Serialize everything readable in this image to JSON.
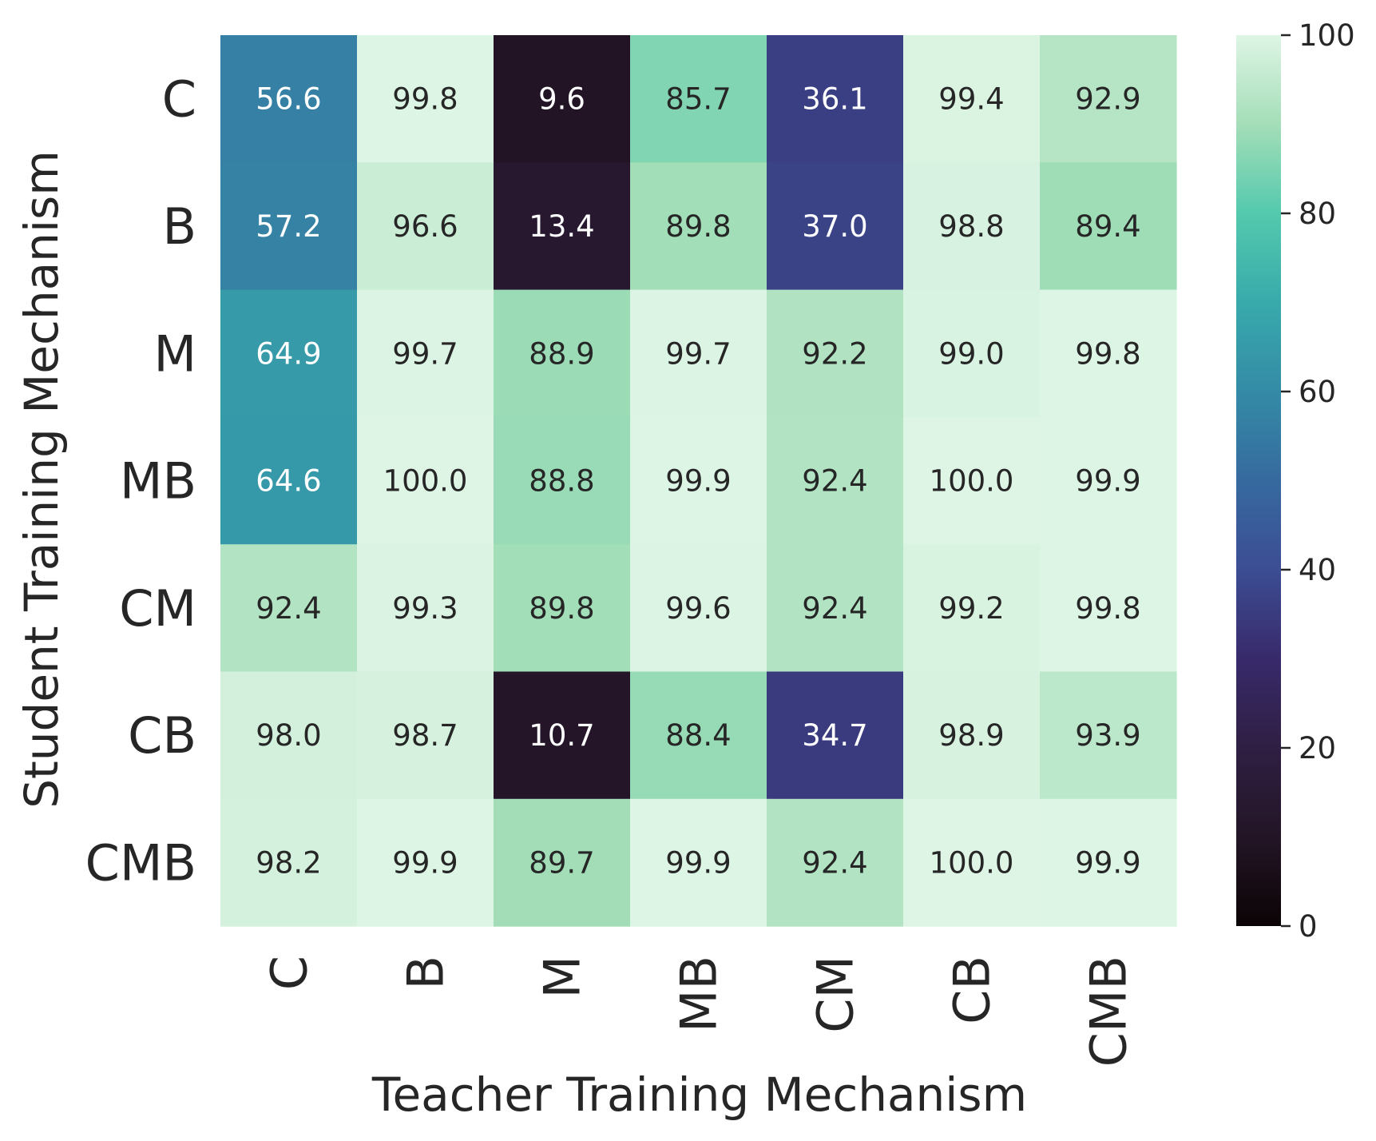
{
  "chart_data": {
    "type": "heatmap",
    "title": "",
    "xlabel": "Teacher Training Mechanism",
    "ylabel": "Student Training Mechanism",
    "x_categories": [
      "C",
      "B",
      "M",
      "MB",
      "CM",
      "CB",
      "CMB"
    ],
    "y_categories": [
      "C",
      "B",
      "M",
      "MB",
      "CM",
      "CB",
      "CMB"
    ],
    "values": [
      [
        56.6,
        99.8,
        9.6,
        85.7,
        36.1,
        99.4,
        92.9
      ],
      [
        57.2,
        96.6,
        13.4,
        89.8,
        37.0,
        98.8,
        89.4
      ],
      [
        64.9,
        99.7,
        88.9,
        99.7,
        92.2,
        99.0,
        99.8
      ],
      [
        64.6,
        100.0,
        88.8,
        99.9,
        92.4,
        100.0,
        99.9
      ],
      [
        92.4,
        99.3,
        89.8,
        99.6,
        92.4,
        99.2,
        99.8
      ],
      [
        98.0,
        98.7,
        10.7,
        88.4,
        34.7,
        98.9,
        93.9
      ],
      [
        98.2,
        99.9,
        89.7,
        99.9,
        92.4,
        100.0,
        99.9
      ]
    ],
    "value_labels": [
      [
        "56.6",
        "99.8",
        "9.6",
        "85.7",
        "36.1",
        "99.4",
        "92.9"
      ],
      [
        "57.2",
        "96.6",
        "13.4",
        "89.8",
        "37.0",
        "98.8",
        "89.4"
      ],
      [
        "64.9",
        "99.7",
        "88.9",
        "99.7",
        "92.2",
        "99.0",
        "99.8"
      ],
      [
        "64.6",
        "100.0",
        "88.8",
        "99.9",
        "92.4",
        "100.0",
        "99.9"
      ],
      [
        "92.4",
        "99.3",
        "89.8",
        "99.6",
        "92.4",
        "99.2",
        "99.8"
      ],
      [
        "98.0",
        "98.7",
        "10.7",
        "88.4",
        "34.7",
        "98.9",
        "93.9"
      ],
      [
        "98.2",
        "99.9",
        "89.7",
        "99.9",
        "92.4",
        "100.0",
        "99.9"
      ]
    ],
    "colorbar": {
      "range": [
        0,
        100
      ],
      "ticks": [
        0,
        20,
        40,
        60,
        80,
        100
      ],
      "tick_labels": [
        "0",
        "20",
        "40",
        "60",
        "80",
        "100"
      ]
    },
    "colormap": "mako",
    "grid": false,
    "legend": "colorbar-right"
  }
}
